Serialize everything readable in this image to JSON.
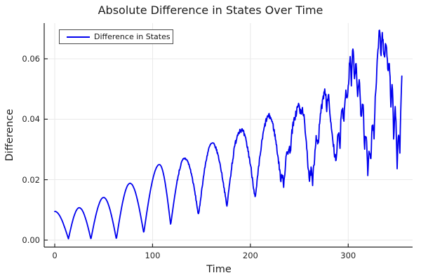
{
  "chart_data": {
    "type": "line",
    "title": "Absolute Difference in States Over Time",
    "xlabel": "Time",
    "ylabel": "Difference",
    "xlim": [
      -12,
      366
    ],
    "ylim": [
      -0.0023,
      0.0718
    ],
    "xticks": [
      0,
      100,
      200,
      300
    ],
    "xtick_labels": [
      "0",
      "100",
      "200",
      "300"
    ],
    "yticks": [
      0.0,
      0.02,
      0.04,
      0.06
    ],
    "ytick_labels": [
      "0.00",
      "0.02",
      "0.04",
      "0.06"
    ],
    "grid": true,
    "legend_position": "top-left",
    "series": [
      {
        "name": "Difference in States",
        "color": "#0000EE",
        "t_start": 0,
        "t_end": 355,
        "sample_step": 0.4,
        "anchors": [
          [
            0,
            0.0095
          ],
          [
            14,
            0.0004
          ],
          [
            25,
            0.0107
          ],
          [
            37,
            0.0003
          ],
          [
            50,
            0.0141
          ],
          [
            63,
            0.0003
          ],
          [
            77,
            0.0188
          ],
          [
            91,
            0.0023
          ],
          [
            107,
            0.025
          ],
          [
            118.5,
            0.005
          ],
          [
            133,
            0.027
          ],
          [
            147,
            0.008
          ],
          [
            161,
            0.032
          ],
          [
            176,
            0.011
          ],
          [
            190,
            0.0365
          ],
          [
            205,
            0.0135
          ],
          [
            219,
            0.041
          ],
          [
            230,
            0.023
          ],
          [
            231.2,
            0.0185
          ],
          [
            232.6,
            0.022
          ],
          [
            234,
            0.018
          ],
          [
            235.5,
            0.023
          ],
          [
            238,
            0.0295
          ],
          [
            241,
            0.03
          ],
          [
            244,
            0.038
          ],
          [
            247,
            0.042
          ],
          [
            249,
            0.0445
          ],
          [
            251.5,
            0.0415
          ],
          [
            253.5,
            0.043
          ],
          [
            256,
            0.035
          ],
          [
            259,
            0.024
          ],
          [
            260.5,
            0.0185
          ],
          [
            262,
            0.023
          ],
          [
            263.5,
            0.0175
          ],
          [
            265,
            0.024
          ],
          [
            267.5,
            0.034
          ],
          [
            269.5,
            0.031
          ],
          [
            272,
            0.042
          ],
          [
            274,
            0.0455
          ],
          [
            276,
            0.05
          ],
          [
            278,
            0.0435
          ],
          [
            280,
            0.047
          ],
          [
            282,
            0.038
          ],
          [
            284,
            0.033
          ],
          [
            286,
            0.0285
          ],
          [
            288,
            0.0265
          ],
          [
            290,
            0.035
          ],
          [
            291.5,
            0.0295
          ],
          [
            293.5,
            0.044
          ],
          [
            295.5,
            0.039
          ],
          [
            297.5,
            0.049
          ],
          [
            299,
            0.046
          ],
          [
            300.5,
            0.052
          ],
          [
            302,
            0.06
          ],
          [
            303.2,
            0.05
          ],
          [
            304.8,
            0.063
          ],
          [
            306.2,
            0.052
          ],
          [
            307.8,
            0.0575
          ],
          [
            309.5,
            0.047
          ],
          [
            311,
            0.052
          ],
          [
            313,
            0.04
          ],
          [
            315,
            0.045
          ],
          [
            316.5,
            0.03
          ],
          [
            318,
            0.0345
          ],
          [
            320,
            0.0215
          ],
          [
            321.5,
            0.03
          ],
          [
            323,
            0.0255
          ],
          [
            325,
            0.038
          ],
          [
            326.5,
            0.034
          ],
          [
            328.5,
            0.05
          ],
          [
            330.5,
            0.062
          ],
          [
            332,
            0.0705
          ],
          [
            333.5,
            0.06
          ],
          [
            335,
            0.0675
          ],
          [
            336.5,
            0.0595
          ],
          [
            338.5,
            0.064
          ],
          [
            340.5,
            0.0555
          ],
          [
            342,
            0.058
          ],
          [
            343.5,
            0.042
          ],
          [
            345,
            0.0505
          ],
          [
            346.5,
            0.0315
          ],
          [
            348,
            0.043
          ],
          [
            350,
            0.0235
          ],
          [
            351.5,
            0.034
          ],
          [
            352.8,
            0.028
          ],
          [
            355,
            0.0535
          ]
        ],
        "noise_segments": [
          [
            125,
            4e-05
          ],
          [
            180,
            0.00045
          ],
          [
            230,
            0.0009
          ],
          [
            400,
            0.0014
          ]
        ],
        "noise_seed": 7
      }
    ],
    "colors": {
      "line": "#0000EE",
      "grid": "#E8E8E8",
      "spine": "#232323",
      "text": "#1e1e1e",
      "background": "#ffffff"
    },
    "legend": {
      "label": "Difference in States"
    }
  }
}
